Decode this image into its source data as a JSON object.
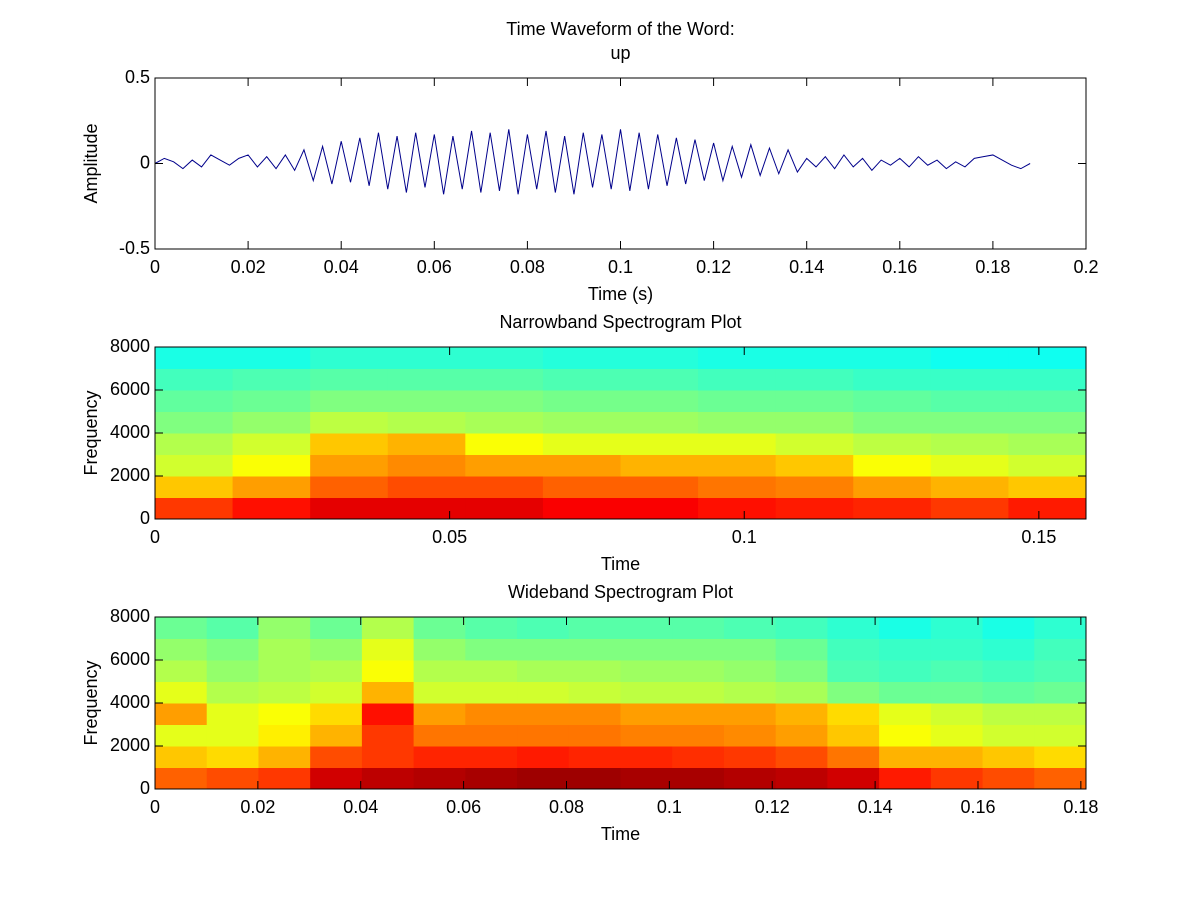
{
  "chart_data": [
    {
      "type": "line",
      "title": [
        "Time Waveform of the Word:",
        "up"
      ],
      "xlabel": "Time (s)",
      "ylabel": "Amplitude",
      "color": "#00008b",
      "xlim": [
        0,
        0.2
      ],
      "xticks": [
        0,
        0.02,
        0.04,
        0.06,
        0.08,
        0.1,
        0.12,
        0.14,
        0.16,
        0.18,
        0.2
      ],
      "ylim": [
        -0.5,
        0.5
      ],
      "yticks": [
        -0.5,
        0,
        0.5
      ],
      "x": [
        0,
        0.002,
        0.004,
        0.006,
        0.008,
        0.01,
        0.012,
        0.014,
        0.016,
        0.018,
        0.02,
        0.022,
        0.024,
        0.026,
        0.028,
        0.03,
        0.032,
        0.034,
        0.036,
        0.038,
        0.04,
        0.042,
        0.044,
        0.046,
        0.048,
        0.05,
        0.052,
        0.054,
        0.056,
        0.058,
        0.06,
        0.062,
        0.064,
        0.066,
        0.068,
        0.07,
        0.072,
        0.074,
        0.076,
        0.078,
        0.08,
        0.082,
        0.084,
        0.086,
        0.088,
        0.09,
        0.092,
        0.094,
        0.096,
        0.098,
        0.1,
        0.102,
        0.104,
        0.106,
        0.108,
        0.11,
        0.112,
        0.114,
        0.116,
        0.118,
        0.12,
        0.122,
        0.124,
        0.126,
        0.128,
        0.13,
        0.132,
        0.134,
        0.136,
        0.138,
        0.14,
        0.142,
        0.144,
        0.146,
        0.148,
        0.15,
        0.152,
        0.154,
        0.156,
        0.158,
        0.16,
        0.162,
        0.164,
        0.166,
        0.168,
        0.17,
        0.172,
        0.174,
        0.176,
        0.178,
        0.18,
        0.182,
        0.184,
        0.186,
        0.188
      ],
      "values": [
        0,
        0.03,
        0.01,
        -0.03,
        0.02,
        -0.02,
        0.05,
        0.02,
        -0.01,
        0.03,
        0.05,
        -0.02,
        0.04,
        -0.03,
        0.05,
        -0.04,
        0.08,
        -0.1,
        0.1,
        -0.12,
        0.13,
        -0.11,
        0.15,
        -0.13,
        0.18,
        -0.15,
        0.16,
        -0.17,
        0.18,
        -0.14,
        0.17,
        -0.18,
        0.16,
        -0.15,
        0.19,
        -0.17,
        0.18,
        -0.16,
        0.2,
        -0.18,
        0.17,
        -0.15,
        0.19,
        -0.17,
        0.16,
        -0.18,
        0.18,
        -0.14,
        0.17,
        -0.15,
        0.2,
        -0.16,
        0.18,
        -0.15,
        0.17,
        -0.13,
        0.15,
        -0.12,
        0.14,
        -0.1,
        0.12,
        -0.1,
        0.1,
        -0.08,
        0.11,
        -0.07,
        0.09,
        -0.06,
        0.08,
        -0.05,
        0.03,
        -0.02,
        0.04,
        -0.03,
        0.05,
        -0.02,
        0.03,
        -0.04,
        0.02,
        -0.01,
        0.03,
        -0.02,
        0.04,
        -0.01,
        0.02,
        -0.03,
        0.01,
        -0.02,
        0.03,
        0.04,
        0.05,
        0.02,
        -0.01,
        -0.03,
        0
      ]
    },
    {
      "type": "heatmap",
      "title": "Narrowband Spectrogram Plot",
      "xlabel": "Time",
      "ylabel": "Frequency",
      "colormap": "jet",
      "zlim": [
        0,
        1
      ],
      "xlim": [
        0,
        0.158
      ],
      "xticks": [
        0,
        0.05,
        0.1,
        0.15
      ],
      "ylim": [
        0,
        8000
      ],
      "yticks": [
        0,
        2000,
        4000,
        6000,
        8000
      ],
      "z": [
        [
          0.82,
          0.86,
          0.9,
          0.9,
          0.9,
          0.88,
          0.88,
          0.86,
          0.85,
          0.84,
          0.82,
          0.85
        ],
        [
          0.68,
          0.72,
          0.78,
          0.8,
          0.8,
          0.78,
          0.78,
          0.76,
          0.75,
          0.72,
          0.7,
          0.68
        ],
        [
          0.58,
          0.62,
          0.72,
          0.74,
          0.72,
          0.72,
          0.7,
          0.7,
          0.68,
          0.62,
          0.6,
          0.58
        ],
        [
          0.55,
          0.58,
          0.68,
          0.7,
          0.62,
          0.6,
          0.6,
          0.6,
          0.58,
          0.56,
          0.55,
          0.54
        ],
        [
          0.5,
          0.52,
          0.56,
          0.55,
          0.54,
          0.53,
          0.53,
          0.52,
          0.52,
          0.5,
          0.5,
          0.5
        ],
        [
          0.47,
          0.48,
          0.5,
          0.5,
          0.5,
          0.49,
          0.49,
          0.48,
          0.48,
          0.47,
          0.46,
          0.46
        ],
        [
          0.44,
          0.45,
          0.46,
          0.46,
          0.46,
          0.45,
          0.45,
          0.44,
          0.44,
          0.43,
          0.43,
          0.43
        ],
        [
          0.4,
          0.4,
          0.42,
          0.42,
          0.42,
          0.41,
          0.41,
          0.4,
          0.4,
          0.4,
          0.39,
          0.39
        ]
      ]
    },
    {
      "type": "heatmap",
      "title": "Wideband Spectrogram Plot",
      "xlabel": "Time",
      "ylabel": "Frequency",
      "colormap": "jet",
      "zlim": [
        0,
        1
      ],
      "xlim": [
        0,
        0.181
      ],
      "xticks": [
        0,
        0.02,
        0.04,
        0.06,
        0.08,
        0.1,
        0.12,
        0.14,
        0.16,
        0.18
      ],
      "ylim": [
        0,
        8000
      ],
      "yticks": [
        0,
        2000,
        4000,
        6000,
        8000
      ],
      "z": [
        [
          0.78,
          0.8,
          0.82,
          0.92,
          0.94,
          0.95,
          0.96,
          0.97,
          0.97,
          0.96,
          0.96,
          0.95,
          0.94,
          0.92,
          0.85,
          0.82,
          0.8,
          0.78
        ],
        [
          0.68,
          0.66,
          0.7,
          0.8,
          0.82,
          0.84,
          0.84,
          0.85,
          0.84,
          0.84,
          0.83,
          0.82,
          0.8,
          0.76,
          0.7,
          0.7,
          0.68,
          0.66
        ],
        [
          0.6,
          0.6,
          0.64,
          0.7,
          0.82,
          0.76,
          0.76,
          0.76,
          0.76,
          0.75,
          0.75,
          0.74,
          0.72,
          0.68,
          0.62,
          0.6,
          0.58,
          0.58
        ],
        [
          0.72,
          0.6,
          0.62,
          0.66,
          0.86,
          0.72,
          0.74,
          0.74,
          0.74,
          0.72,
          0.72,
          0.72,
          0.7,
          0.66,
          0.6,
          0.58,
          0.56,
          0.56
        ],
        [
          0.6,
          0.55,
          0.56,
          0.58,
          0.7,
          0.58,
          0.58,
          0.58,
          0.57,
          0.56,
          0.56,
          0.55,
          0.54,
          0.5,
          0.48,
          0.48,
          0.47,
          0.48
        ],
        [
          0.55,
          0.52,
          0.54,
          0.55,
          0.62,
          0.55,
          0.55,
          0.54,
          0.54,
          0.53,
          0.53,
          0.52,
          0.5,
          0.45,
          0.44,
          0.45,
          0.44,
          0.45
        ],
        [
          0.52,
          0.5,
          0.54,
          0.52,
          0.6,
          0.52,
          0.5,
          0.5,
          0.5,
          0.5,
          0.5,
          0.5,
          0.48,
          0.44,
          0.43,
          0.43,
          0.42,
          0.44
        ],
        [
          0.48,
          0.46,
          0.52,
          0.48,
          0.55,
          0.48,
          0.46,
          0.45,
          0.46,
          0.46,
          0.46,
          0.45,
          0.44,
          0.42,
          0.4,
          0.42,
          0.4,
          0.42
        ]
      ]
    }
  ]
}
